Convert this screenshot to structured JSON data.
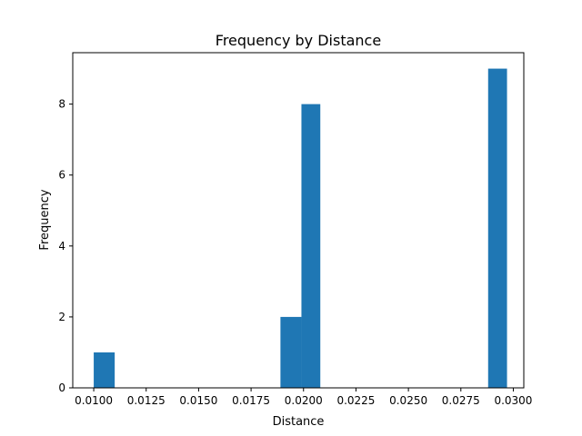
{
  "chart_data": {
    "type": "bar",
    "title": "Frequency by Distance",
    "xlabel": "Distance",
    "ylabel": "Frequency",
    "xlim": [
      0.009,
      0.0305
    ],
    "ylim": [
      0,
      9.45
    ],
    "xticks": [
      "0.0100",
      "0.0125",
      "0.0150",
      "0.0175",
      "0.0200",
      "0.0225",
      "0.0250",
      "0.0275",
      "0.0300"
    ],
    "yticks": [
      "0",
      "2",
      "4",
      "6",
      "8"
    ],
    "bins": [
      {
        "x0": 0.01,
        "x1": 0.011,
        "count": 1
      },
      {
        "x0": 0.0189,
        "x1": 0.0199,
        "count": 2
      },
      {
        "x0": 0.0199,
        "x1": 0.0208,
        "count": 8
      },
      {
        "x0": 0.0288,
        "x1": 0.0297,
        "count": 9
      }
    ],
    "color": "#1f77b4",
    "grid": false,
    "legend": "none"
  }
}
